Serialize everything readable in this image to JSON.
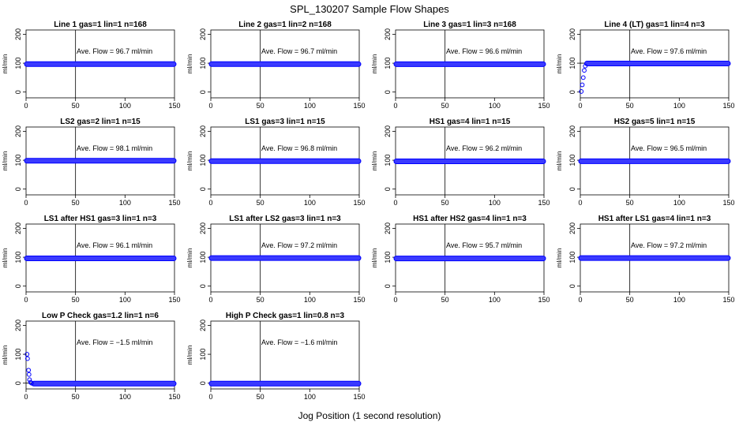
{
  "figure": {
    "title": "SPL_130207  Sample Flow Shapes",
    "xlabel": "Jog Position (1 second resolution)"
  },
  "chart_data": [
    {
      "type": "scatter",
      "title": "Line 1 gas=1 lin=1 n=168",
      "ylabel": "ml/min",
      "xlim": [
        0,
        150
      ],
      "ylim": [
        -20,
        215
      ],
      "xticks": [
        "0",
        "50",
        "100",
        "150"
      ],
      "yticks": [
        "0",
        "100",
        "200"
      ],
      "annotation": "Ave. Flow = 96.7  ml/min",
      "ref_lines": {
        "x": 50,
        "y": 100
      },
      "series": [
        {
          "color": "#0000ff",
          "shape": "flat",
          "x_range": [
            0,
            150
          ],
          "level": 96.7
        }
      ]
    },
    {
      "type": "scatter",
      "title": "Line 2 gas=1 lin=2 n=168",
      "ylabel": "ml/min",
      "xlim": [
        0,
        150
      ],
      "ylim": [
        -20,
        215
      ],
      "xticks": [
        "0",
        "50",
        "100",
        "150"
      ],
      "yticks": [
        "0",
        "100",
        "200"
      ],
      "annotation": "Ave. Flow = 96.7  ml/min",
      "ref_lines": {
        "x": 50,
        "y": 100
      },
      "series": [
        {
          "color": "#0000ff",
          "shape": "flat",
          "x_range": [
            0,
            150
          ],
          "level": 96.7
        }
      ]
    },
    {
      "type": "scatter",
      "title": "Line 3 gas=1 lin=3 n=168",
      "ylabel": "ml/min",
      "xlim": [
        0,
        150
      ],
      "ylim": [
        -20,
        215
      ],
      "xticks": [
        "0",
        "50",
        "100",
        "150"
      ],
      "yticks": [
        "0",
        "100",
        "200"
      ],
      "annotation": "Ave. Flow = 96.6  ml/min",
      "ref_lines": {
        "x": 50,
        "y": 100
      },
      "series": [
        {
          "color": "#0000ff",
          "shape": "flat",
          "x_range": [
            0,
            150
          ],
          "level": 96.6
        }
      ]
    },
    {
      "type": "scatter",
      "title": "Line 4 (LT) gas=1 lin=4 n=3",
      "ylabel": "ml/min",
      "xlim": [
        0,
        150
      ],
      "ylim": [
        -20,
        215
      ],
      "xticks": [
        "0",
        "50",
        "100",
        "150"
      ],
      "yticks": [
        "0",
        "100",
        "200"
      ],
      "annotation": "Ave. Flow = 97.6  ml/min",
      "ref_lines": {
        "x": 50,
        "y": 100
      },
      "series": [
        {
          "color": "#0000ff",
          "shape": "flat",
          "x_range": [
            6,
            150
          ],
          "level": 99
        }
      ],
      "early_points": [
        {
          "x": 1,
          "y": 2
        },
        {
          "x": 2,
          "y": 25
        },
        {
          "x": 3,
          "y": 50
        },
        {
          "x": 4,
          "y": 75
        },
        {
          "x": 5,
          "y": 90
        }
      ]
    },
    {
      "type": "scatter",
      "title": "LS2 gas=2 lin=1 n=15",
      "ylabel": "ml/min",
      "xlim": [
        0,
        150
      ],
      "ylim": [
        -20,
        215
      ],
      "xticks": [
        "0",
        "50",
        "100",
        "150"
      ],
      "yticks": [
        "0",
        "100",
        "200"
      ],
      "annotation": "Ave. Flow = 98.1  ml/min",
      "ref_lines": {
        "x": 50,
        "y": 100
      },
      "series": [
        {
          "color": "#0000ff",
          "shape": "flat",
          "x_range": [
            0,
            150
          ],
          "level": 98.1
        }
      ]
    },
    {
      "type": "scatter",
      "title": "LS1 gas=3 lin=1 n=15",
      "ylabel": "ml/min",
      "xlim": [
        0,
        150
      ],
      "ylim": [
        -20,
        215
      ],
      "xticks": [
        "0",
        "50",
        "100",
        "150"
      ],
      "yticks": [
        "0",
        "100",
        "200"
      ],
      "annotation": "Ave. Flow = 96.8  ml/min",
      "ref_lines": {
        "x": 50,
        "y": 100
      },
      "series": [
        {
          "color": "#0000ff",
          "shape": "flat",
          "x_range": [
            0,
            150
          ],
          "level": 96.8
        }
      ]
    },
    {
      "type": "scatter",
      "title": "HS1 gas=4 lin=1 n=15",
      "ylabel": "ml/min",
      "xlim": [
        0,
        150
      ],
      "ylim": [
        -20,
        215
      ],
      "xticks": [
        "0",
        "50",
        "100",
        "150"
      ],
      "yticks": [
        "0",
        "100",
        "200"
      ],
      "annotation": "Ave. Flow = 96.2  ml/min",
      "ref_lines": {
        "x": 50,
        "y": 100
      },
      "series": [
        {
          "color": "#0000ff",
          "shape": "flat",
          "x_range": [
            0,
            150
          ],
          "level": 96.2
        }
      ]
    },
    {
      "type": "scatter",
      "title": "HS2 gas=5 lin=1 n=15",
      "ylabel": "ml/min",
      "xlim": [
        0,
        150
      ],
      "ylim": [
        -20,
        215
      ],
      "xticks": [
        "0",
        "50",
        "100",
        "150"
      ],
      "yticks": [
        "0",
        "100",
        "200"
      ],
      "annotation": "Ave. Flow = 96.5  ml/min",
      "ref_lines": {
        "x": 50,
        "y": 100
      },
      "series": [
        {
          "color": "#0000ff",
          "shape": "flat",
          "x_range": [
            0,
            150
          ],
          "level": 96.5
        }
      ]
    },
    {
      "type": "scatter",
      "title": "LS1 after HS1 gas=3 lin=1 n=3",
      "ylabel": "ml/min",
      "xlim": [
        0,
        150
      ],
      "ylim": [
        -20,
        215
      ],
      "xticks": [
        "0",
        "50",
        "100",
        "150"
      ],
      "yticks": [
        "0",
        "100",
        "200"
      ],
      "annotation": "Ave. Flow = 96.1  ml/min",
      "ref_lines": {
        "x": 50,
        "y": 100
      },
      "series": [
        {
          "color": "#0000ff",
          "shape": "flat",
          "x_range": [
            0,
            150
          ],
          "level": 96.1
        }
      ]
    },
    {
      "type": "scatter",
      "title": "LS1 after LS2 gas=3 lin=1 n=3",
      "ylabel": "ml/min",
      "xlim": [
        0,
        150
      ],
      "ylim": [
        -20,
        215
      ],
      "xticks": [
        "0",
        "50",
        "100",
        "150"
      ],
      "yticks": [
        "0",
        "100",
        "200"
      ],
      "annotation": "Ave. Flow = 97.2  ml/min",
      "ref_lines": {
        "x": 50,
        "y": 100
      },
      "series": [
        {
          "color": "#0000ff",
          "shape": "flat",
          "x_range": [
            0,
            150
          ],
          "level": 97.2
        }
      ]
    },
    {
      "type": "scatter",
      "title": "HS1 after HS2 gas=4 lin=1 n=3",
      "ylabel": "ml/min",
      "xlim": [
        0,
        150
      ],
      "ylim": [
        -20,
        215
      ],
      "xticks": [
        "0",
        "50",
        "100",
        "150"
      ],
      "yticks": [
        "0",
        "100",
        "200"
      ],
      "annotation": "Ave. Flow = 95.7  ml/min",
      "ref_lines": {
        "x": 50,
        "y": 100
      },
      "series": [
        {
          "color": "#0000ff",
          "shape": "flat",
          "x_range": [
            0,
            150
          ],
          "level": 95.7
        }
      ]
    },
    {
      "type": "scatter",
      "title": "HS1 after LS1 gas=4 lin=1 n=3",
      "ylabel": "ml/min",
      "xlim": [
        0,
        150
      ],
      "ylim": [
        -20,
        215
      ],
      "xticks": [
        "0",
        "50",
        "100",
        "150"
      ],
      "yticks": [
        "0",
        "100",
        "200"
      ],
      "annotation": "Ave. Flow = 97.2  ml/min",
      "ref_lines": {
        "x": 50,
        "y": 100
      },
      "series": [
        {
          "color": "#0000ff",
          "shape": "flat",
          "x_range": [
            0,
            150
          ],
          "level": 97.2
        }
      ]
    },
    {
      "type": "scatter",
      "title": "Low P Check gas=1.2 lin=1 n=6",
      "ylabel": "ml/min",
      "xlim": [
        0,
        150
      ],
      "ylim": [
        -20,
        215
      ],
      "xticks": [
        "0",
        "50",
        "100",
        "150"
      ],
      "yticks": [
        "0",
        "100",
        "200"
      ],
      "annotation": "Ave. Flow = −1.5  ml/min",
      "ref_lines": {
        "x": 50,
        "y": 0
      },
      "series": [
        {
          "color": "#0000ff",
          "shape": "flat",
          "x_range": [
            7,
            150
          ],
          "level": -1.5
        }
      ],
      "early_points": [
        {
          "x": 1,
          "y": 100
        },
        {
          "x": 1.5,
          "y": 85
        },
        {
          "x": 2.5,
          "y": 45
        },
        {
          "x": 3,
          "y": 30
        },
        {
          "x": 3.5,
          "y": 12
        },
        {
          "x": 4.5,
          "y": 3
        },
        {
          "x": 5.5,
          "y": 0
        }
      ]
    },
    {
      "type": "scatter",
      "title": "High P Check gas=1 lin=0.8 n=3",
      "ylabel": "ml/min",
      "xlim": [
        0,
        150
      ],
      "ylim": [
        -20,
        215
      ],
      "xticks": [
        "0",
        "50",
        "100",
        "150"
      ],
      "yticks": [
        "0",
        "100",
        "200"
      ],
      "annotation": "Ave. Flow = −1.6  ml/min",
      "ref_lines": {
        "x": 50,
        "y": 0
      },
      "series": [
        {
          "color": "#0000ff",
          "shape": "flat",
          "x_range": [
            0,
            150
          ],
          "level": -1.6
        }
      ]
    }
  ]
}
